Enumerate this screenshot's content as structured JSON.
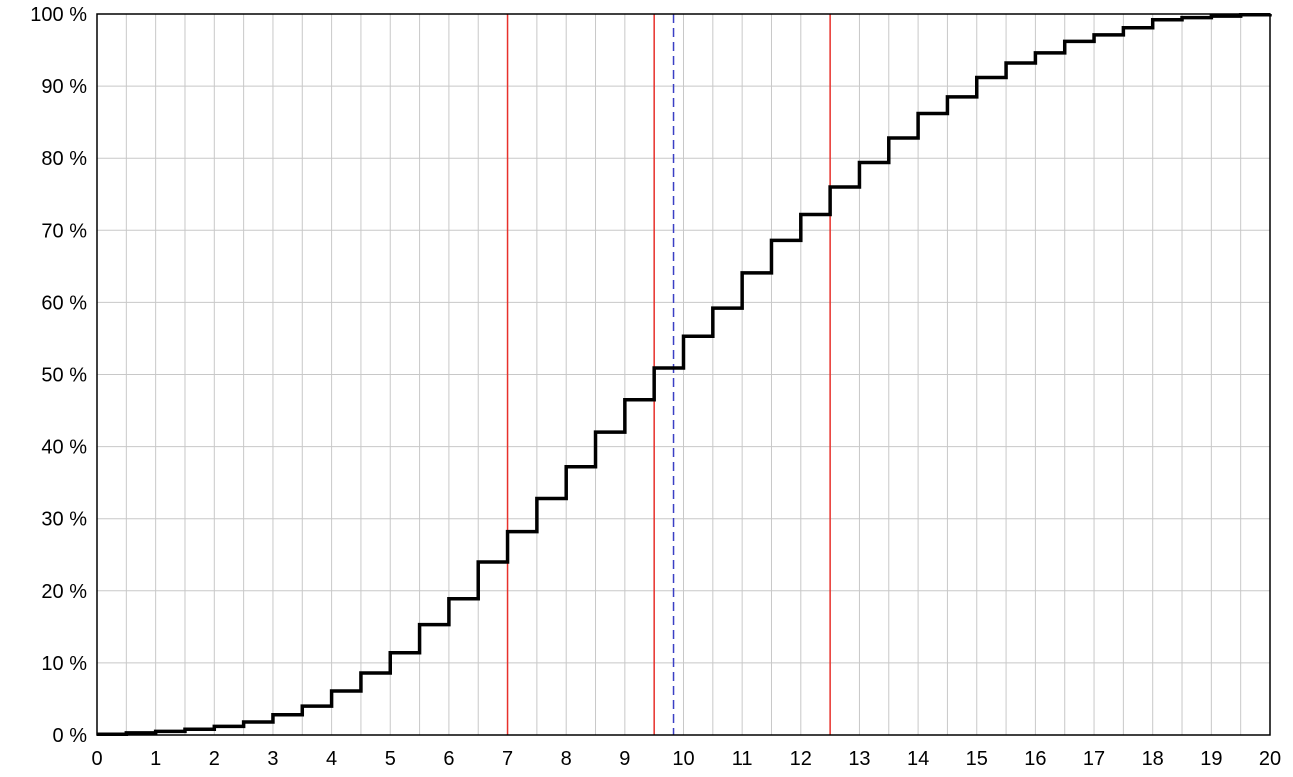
{
  "chart_data": {
    "type": "line",
    "step": true,
    "title": "",
    "xlabel": "",
    "ylabel": "",
    "xlim": [
      0,
      20
    ],
    "ylim": [
      0,
      100
    ],
    "grid": true,
    "x_ticks": [
      "0",
      "1",
      "2",
      "3",
      "4",
      "5",
      "6",
      "7",
      "8",
      "9",
      "10",
      "11",
      "12",
      "13",
      "14",
      "15",
      "16",
      "17",
      "18",
      "19",
      "20"
    ],
    "y_ticks": [
      "0 %",
      "10 %",
      "20 %",
      "30 %",
      "40 %",
      "50 %",
      "60 %",
      "70 %",
      "80 %",
      "90 %",
      "100 %"
    ],
    "series": [
      {
        "color": "#000000",
        "x": [
          0,
          0.5,
          1,
          1.5,
          2,
          2.5,
          3,
          3.5,
          4,
          4.5,
          5,
          5.5,
          6,
          6.5,
          7,
          7.5,
          8,
          8.5,
          9,
          9.5,
          10,
          10.5,
          11,
          11.5,
          12,
          12.5,
          13,
          13.5,
          14,
          14.5,
          15,
          15.5,
          16,
          16.5,
          17,
          17.5,
          18,
          18.5,
          19,
          19.5,
          20
        ],
        "y": [
          0.1,
          0.3,
          0.5,
          0.8,
          1.2,
          1.8,
          2.8,
          4.0,
          6.1,
          8.6,
          11.4,
          15.3,
          18.9,
          24.0,
          28.2,
          32.8,
          37.2,
          42.0,
          46.5,
          50.9,
          55.3,
          59.2,
          64.1,
          68.6,
          72.2,
          76.0,
          79.4,
          82.8,
          86.2,
          88.5,
          91.2,
          93.2,
          94.6,
          96.2,
          97.1,
          98.1,
          99.2,
          99.5,
          99.7,
          99.9,
          100
        ]
      }
    ],
    "vertical_lines": [
      {
        "x": 7.0,
        "color": "#e8312b",
        "style": "solid"
      },
      {
        "x": 9.5,
        "color": "#e8312b",
        "style": "solid"
      },
      {
        "x": 9.83,
        "color": "#3a3fc4",
        "style": "dashed"
      },
      {
        "x": 12.5,
        "color": "#e8312b",
        "style": "solid"
      }
    ]
  }
}
